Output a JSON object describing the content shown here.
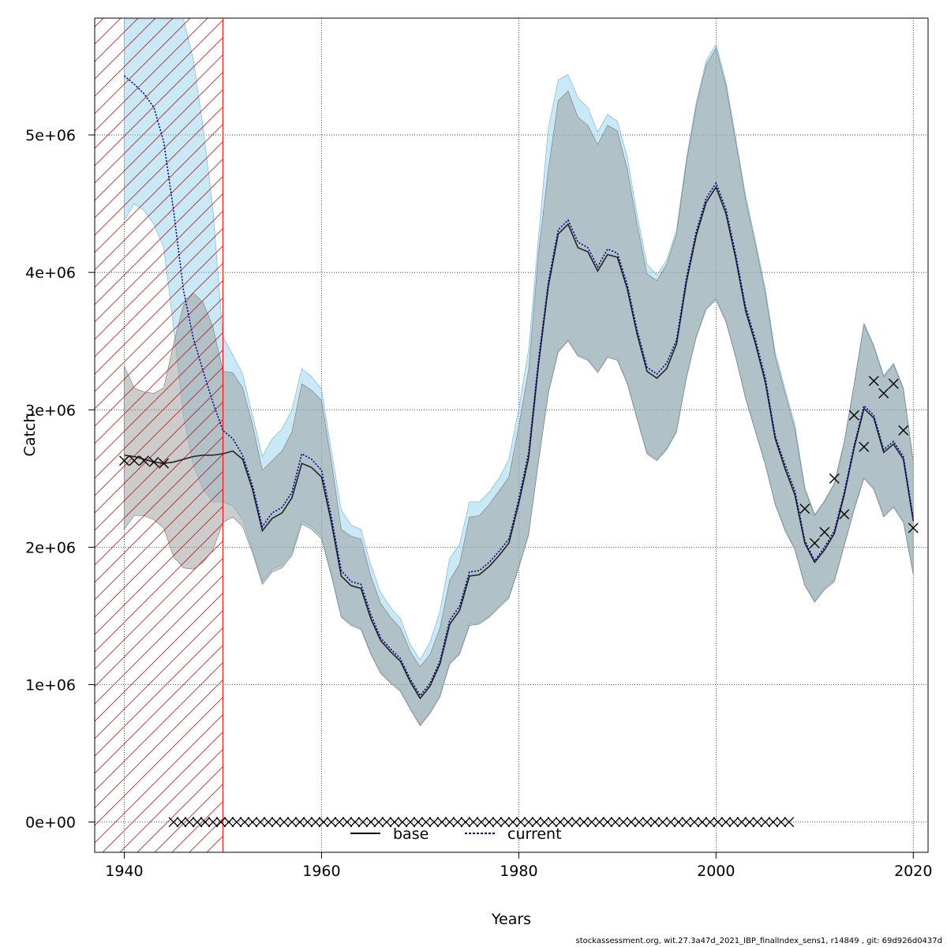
{
  "chart_data": {
    "type": "line",
    "xlabel": "Years",
    "ylabel": "Catch",
    "xlim": [
      1937,
      2021.5
    ],
    "ylim": [
      -220000,
      5850000
    ],
    "x_ticks": [
      1940,
      1960,
      1980,
      2000,
      2020
    ],
    "y_ticks": [
      0,
      1000000,
      2000000,
      3000000,
      4000000,
      5000000
    ],
    "y_tick_labels": [
      "0e+00",
      "1e+06",
      "2e+06",
      "3e+06",
      "4e+06",
      "5e+06"
    ],
    "grid": true,
    "legend": {
      "placement": "bottom-center",
      "entries": [
        "base",
        "current"
      ]
    },
    "shaded_period": {
      "from": 1937,
      "to": 1950,
      "style": "red-hatched"
    },
    "colors": {
      "base_band": "#999999",
      "current_band": "#87ceeb",
      "base_line": "#000000",
      "current_line": "#00008b",
      "hatch": "#ff0000",
      "observations": "#000000"
    },
    "x": [
      1940,
      1941,
      1942,
      1943,
      1944,
      1945,
      1946,
      1947,
      1948,
      1949,
      1950,
      1951,
      1952,
      1953,
      1954,
      1955,
      1956,
      1957,
      1958,
      1959,
      1960,
      1961,
      1962,
      1963,
      1964,
      1965,
      1966,
      1967,
      1968,
      1969,
      1970,
      1971,
      1972,
      1973,
      1974,
      1975,
      1976,
      1977,
      1978,
      1979,
      1980,
      1981,
      1982,
      1983,
      1984,
      1985,
      1986,
      1987,
      1988,
      1989,
      1990,
      1991,
      1992,
      1993,
      1994,
      1995,
      1996,
      1997,
      1998,
      1999,
      2000,
      2001,
      2002,
      2003,
      2004,
      2005,
      2006,
      2007,
      2008,
      2009,
      2010,
      2011,
      2012,
      2013,
      2014,
      2015,
      2016,
      2017,
      2018,
      2019,
      2020
    ],
    "series": [
      {
        "name": "base",
        "values": [
          2670000,
          2660000,
          2640000,
          2620000,
          2610000,
          2620000,
          2640000,
          2660000,
          2670000,
          2670000,
          2680000,
          2700000,
          2640000,
          2420000,
          2120000,
          2210000,
          2250000,
          2360000,
          2610000,
          2580000,
          2510000,
          2180000,
          1790000,
          1720000,
          1700000,
          1480000,
          1320000,
          1240000,
          1170000,
          1020000,
          900000,
          990000,
          1150000,
          1440000,
          1540000,
          1790000,
          1800000,
          1860000,
          1940000,
          2030000,
          2320000,
          2650000,
          3330000,
          3900000,
          4280000,
          4350000,
          4180000,
          4150000,
          4010000,
          4130000,
          4110000,
          3880000,
          3550000,
          3280000,
          3230000,
          3300000,
          3480000,
          3930000,
          4270000,
          4510000,
          4620000,
          4430000,
          4100000,
          3720000,
          3480000,
          3200000,
          2790000,
          2570000,
          2380000,
          2030000,
          1890000,
          1980000,
          2100000,
          2380000,
          2720000,
          3010000,
          2940000,
          2690000,
          2750000,
          2640000,
          2190000
        ],
        "band_lower": [
          2130000,
          2230000,
          2230000,
          2200000,
          2140000,
          1930000,
          1850000,
          1840000,
          1890000,
          1980000,
          2180000,
          2220000,
          2150000,
          1960000,
          1730000,
          1820000,
          1850000,
          1940000,
          2170000,
          2130000,
          2060000,
          1790000,
          1490000,
          1430000,
          1400000,
          1220000,
          1080000,
          1010000,
          950000,
          820000,
          700000,
          790000,
          910000,
          1150000,
          1220000,
          1430000,
          1440000,
          1490000,
          1560000,
          1630000,
          1850000,
          2090000,
          2620000,
          3120000,
          3420000,
          3500000,
          3390000,
          3360000,
          3270000,
          3380000,
          3360000,
          3190000,
          2930000,
          2680000,
          2630000,
          2710000,
          2840000,
          3230000,
          3530000,
          3730000,
          3800000,
          3640000,
          3380000,
          3080000,
          2840000,
          2600000,
          2310000,
          2120000,
          1980000,
          1720000,
          1600000,
          1690000,
          1750000,
          2010000,
          2270000,
          2500000,
          2420000,
          2220000,
          2290000,
          2180000,
          1800000
        ],
        "band_upper": [
          3320000,
          3160000,
          3130000,
          3120000,
          3160000,
          3480000,
          3760000,
          3850000,
          3780000,
          3600000,
          3280000,
          3270000,
          3160000,
          2890000,
          2560000,
          2630000,
          2700000,
          2840000,
          3190000,
          3140000,
          3070000,
          2620000,
          2130000,
          2080000,
          2060000,
          1790000,
          1590000,
          1490000,
          1410000,
          1240000,
          1130000,
          1220000,
          1410000,
          1760000,
          1880000,
          2220000,
          2230000,
          2310000,
          2410000,
          2510000,
          2880000,
          3290000,
          4140000,
          4750000,
          5250000,
          5320000,
          5130000,
          5070000,
          4930000,
          5070000,
          5030000,
          4750000,
          4350000,
          3990000,
          3940000,
          4060000,
          4280000,
          4800000,
          5210000,
          5510000,
          5630000,
          5360000,
          4950000,
          4530000,
          4200000,
          3850000,
          3390000,
          3120000,
          2860000,
          2420000,
          2230000,
          2330000,
          2460000,
          2760000,
          3180000,
          3620000,
          3460000,
          3240000,
          3330000,
          3150000,
          2620000
        ]
      },
      {
        "name": "current",
        "values": [
          5430000,
          5370000,
          5300000,
          5200000,
          4950000,
          4450000,
          3870000,
          3520000,
          3280000,
          3050000,
          2850000,
          2790000,
          2670000,
          2450000,
          2150000,
          2250000,
          2290000,
          2400000,
          2680000,
          2640000,
          2560000,
          2220000,
          1830000,
          1750000,
          1730000,
          1510000,
          1340000,
          1260000,
          1190000,
          1040000,
          920000,
          1010000,
          1170000,
          1470000,
          1570000,
          1820000,
          1830000,
          1890000,
          1970000,
          2060000,
          2350000,
          2690000,
          3360000,
          3930000,
          4310000,
          4380000,
          4220000,
          4180000,
          4040000,
          4170000,
          4140000,
          3910000,
          3580000,
          3310000,
          3260000,
          3340000,
          3510000,
          3960000,
          4300000,
          4540000,
          4650000,
          4460000,
          4130000,
          3750000,
          3510000,
          3230000,
          2810000,
          2600000,
          2410000,
          2050000,
          1900000,
          2000000,
          2120000,
          2400000,
          2740000,
          3030000,
          2960000,
          2710000,
          2770000,
          2660000,
          2210000
        ],
        "band_lower": [
          4380000,
          4500000,
          4450000,
          4350000,
          4180000,
          3600000,
          2950000,
          2600000,
          2420000,
          2330000,
          2330000,
          2300000,
          2200000,
          1980000,
          1750000,
          1840000,
          1870000,
          1960000,
          2190000,
          2150000,
          2080000,
          1810000,
          1500000,
          1440000,
          1410000,
          1230000,
          1090000,
          1020000,
          960000,
          830000,
          710000,
          800000,
          920000,
          1160000,
          1230000,
          1440000,
          1450000,
          1500000,
          1570000,
          1640000,
          1860000,
          2100000,
          2630000,
          3130000,
          3430000,
          3510000,
          3400000,
          3370000,
          3280000,
          3390000,
          3370000,
          3200000,
          2940000,
          2690000,
          2640000,
          2720000,
          2850000,
          3240000,
          3540000,
          3740000,
          3810000,
          3650000,
          3390000,
          3090000,
          2850000,
          2610000,
          2320000,
          2130000,
          1990000,
          1730000,
          1610000,
          1700000,
          1760000,
          2020000,
          2280000,
          2510000,
          2430000,
          2230000,
          2300000,
          2190000,
          1810000
        ],
        "band_upper": [
          5840000,
          5840000,
          5840000,
          5840000,
          5840000,
          5840000,
          5840000,
          5550000,
          5050000,
          4450000,
          3530000,
          3400000,
          3260000,
          2960000,
          2660000,
          2790000,
          2860000,
          3000000,
          3300000,
          3240000,
          3150000,
          2700000,
          2270000,
          2160000,
          2130000,
          1870000,
          1670000,
          1560000,
          1480000,
          1290000,
          1180000,
          1310000,
          1530000,
          1920000,
          2020000,
          2330000,
          2330000,
          2400000,
          2500000,
          2640000,
          3010000,
          3440000,
          4260000,
          5050000,
          5400000,
          5440000,
          5270000,
          5200000,
          5020000,
          5150000,
          5100000,
          4840000,
          4420000,
          4060000,
          3980000,
          4090000,
          4310000,
          4830000,
          5240000,
          5540000,
          5660000,
          5390000,
          4980000,
          4560000,
          4230000,
          3880000,
          3420000,
          3150000,
          2890000,
          2440000,
          2240000,
          2340000,
          2470000,
          2770000,
          3190000,
          3630000,
          3470000,
          3250000,
          3340000,
          3160000,
          2630000
        ]
      }
    ],
    "observations": {
      "x": [
        1940,
        1941,
        1942,
        1943,
        1944,
        2009,
        2010,
        2011,
        2012,
        2013,
        2014,
        2015,
        2016,
        2017,
        2018,
        2019,
        2020
      ],
      "y": [
        2630000,
        2630000,
        2630000,
        2620000,
        2610000,
        2280000,
        2030000,
        2110000,
        2500000,
        2240000,
        2960000,
        2730000,
        3210000,
        3120000,
        3190000,
        2850000,
        2140000
      ]
    },
    "zero_catch_observations": {
      "from": 1945,
      "to": 2008,
      "step": 0.8,
      "y": 0
    }
  },
  "footer_text": "stockassessment.org, wit.27.3a47d_2021_IBP_finalIndex_sens1, r14849 , git: 69d926d0437d"
}
